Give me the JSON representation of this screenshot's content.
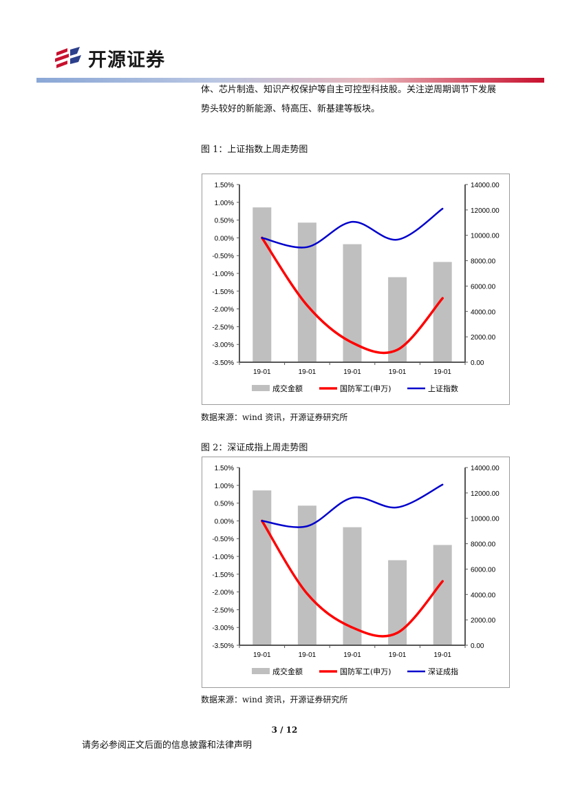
{
  "header": {
    "logo_text": "开源证券",
    "accent_color": "#c8102e"
  },
  "body_text": {
    "line1": "体、芯片制造、知识产权保护等自主可控型科技股。关注逆周期调节下发展",
    "line2": "势头较好的新能源、特高压、新基建等板块。"
  },
  "figures": [
    {
      "title": "图 1：上证指数上周走势图",
      "source": "数据来源：wind 资讯，开源证券研究所"
    },
    {
      "title": "图 2：深证成指上周走势图",
      "source": "数据来源：wind 资讯，开源证券研究所"
    }
  ],
  "chart_data": [
    {
      "type": "bar",
      "categories": [
        "19-01",
        "19-01",
        "19-01",
        "19-01",
        "19-01"
      ],
      "left_axis": {
        "ticks": [
          "1.50%",
          "1.00%",
          "0.50%",
          "0.00%",
          "-0.50%",
          "-1.00%",
          "-1.50%",
          "-2.00%",
          "-2.50%",
          "-3.00%",
          "-3.50%"
        ],
        "ylim": [
          -3.5,
          1.5
        ]
      },
      "right_axis": {
        "ticks": [
          "14000.00",
          "12000.00",
          "10000.00",
          "8000.00",
          "6000.00",
          "4000.00",
          "2000.00",
          "0.00"
        ],
        "ylim": [
          0,
          14000
        ]
      },
      "series": [
        {
          "name": "成交金额",
          "kind": "bar",
          "axis": "right",
          "color": "#bfbfbf",
          "values": [
            12200,
            11000,
            9300,
            6700,
            7900
          ]
        },
        {
          "name": "国防军工(申万)",
          "kind": "line",
          "axis": "left",
          "color": "#ff0000",
          "values": [
            0.0,
            -1.9,
            -2.95,
            -3.15,
            -1.7
          ]
        },
        {
          "name": "上证指数",
          "kind": "line",
          "axis": "left",
          "color": "#0000cc",
          "values": [
            0.0,
            -0.26,
            0.45,
            -0.05,
            0.82
          ]
        }
      ]
    },
    {
      "type": "bar",
      "categories": [
        "19-01",
        "19-01",
        "19-01",
        "19-01",
        "19-01"
      ],
      "left_axis": {
        "ticks": [
          "1.50%",
          "1.00%",
          "0.50%",
          "0.00%",
          "-0.50%",
          "-1.00%",
          "-1.50%",
          "-2.00%",
          "-2.50%",
          "-3.00%",
          "-3.50%"
        ],
        "ylim": [
          -3.5,
          1.5
        ]
      },
      "right_axis": {
        "ticks": [
          "14000.00",
          "12000.00",
          "10000.00",
          "8000.00",
          "6000.00",
          "4000.00",
          "2000.00",
          "0.00"
        ],
        "ylim": [
          0,
          14000
        ]
      },
      "series": [
        {
          "name": "成交金额",
          "kind": "bar",
          "axis": "right",
          "color": "#bfbfbf",
          "values": [
            12200,
            11000,
            9300,
            6700,
            7900
          ]
        },
        {
          "name": "国防军工(申万)",
          "kind": "line",
          "axis": "left",
          "color": "#ff0000",
          "values": [
            0.0,
            -2.05,
            -3.0,
            -3.15,
            -1.7
          ]
        },
        {
          "name": "深证成指",
          "kind": "line",
          "axis": "left",
          "color": "#0000cc",
          "values": [
            0.0,
            -0.15,
            0.65,
            0.38,
            1.02
          ]
        }
      ]
    }
  ],
  "footer": {
    "page": "3 / 12",
    "disclaimer": "请务必参阅正文后面的信息披露和法律声明"
  }
}
